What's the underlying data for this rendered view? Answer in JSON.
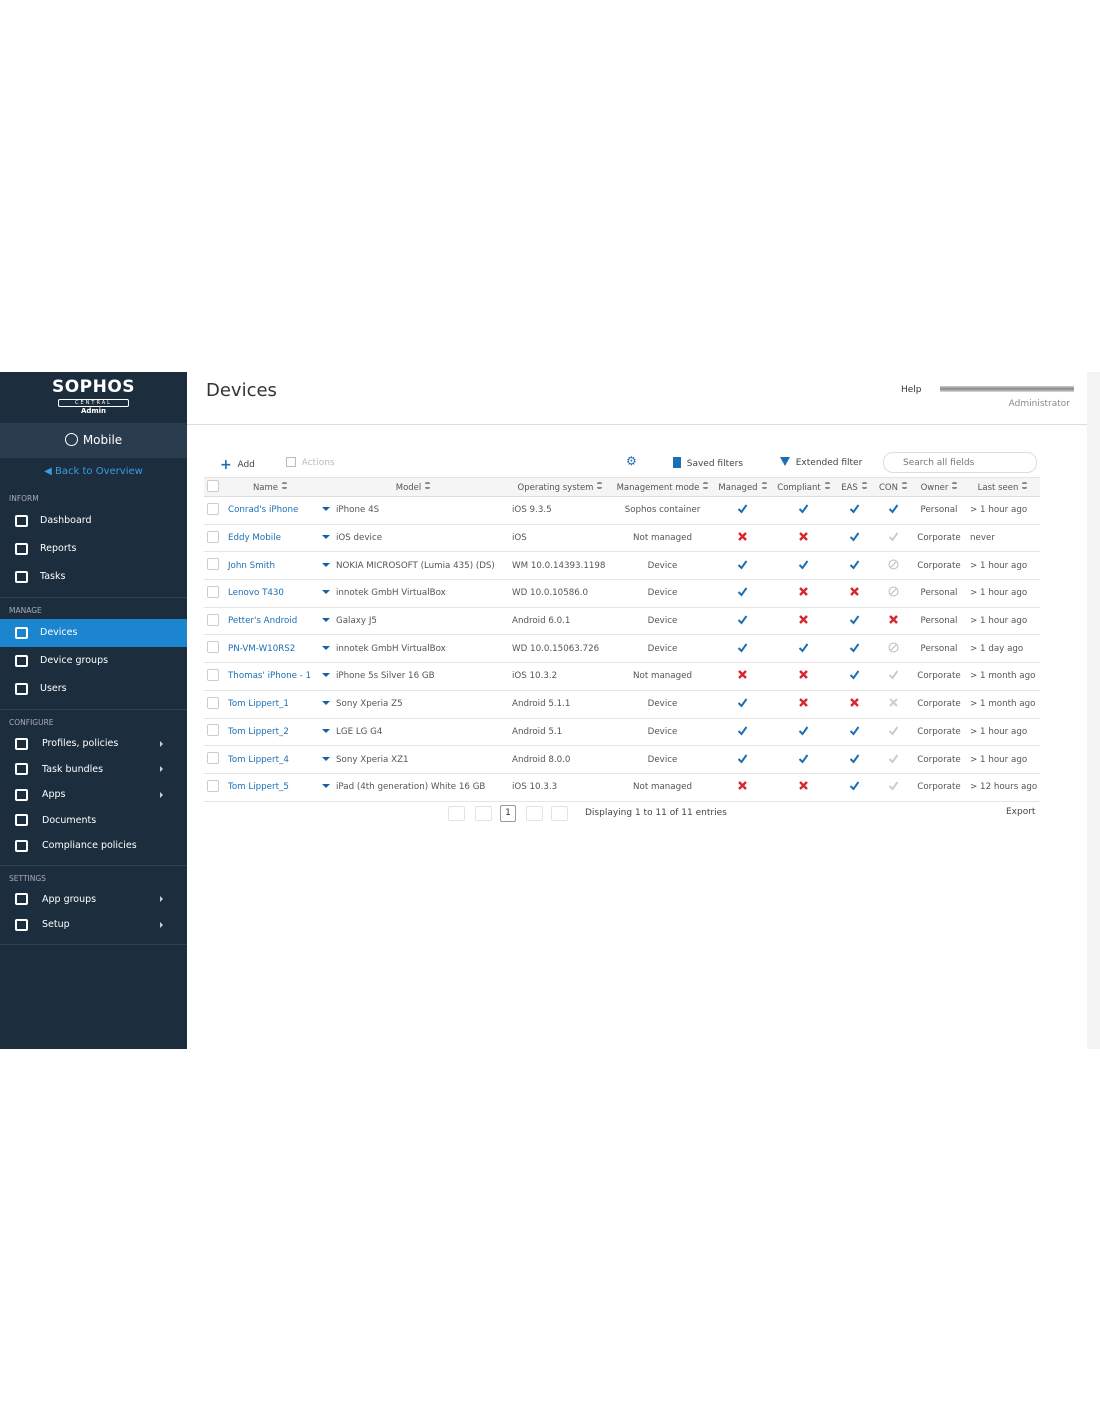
{
  "sidebar": {
    "logo": "SOPHOS",
    "logo_sub": "CENTRAL",
    "logo_role": "Admin",
    "product": "Mobile",
    "back": "Back to Overview",
    "sections": [
      {
        "title": "INFORM",
        "items": [
          {
            "label": "Dashboard"
          },
          {
            "label": "Reports"
          },
          {
            "label": "Tasks"
          }
        ]
      },
      {
        "title": "MANAGE",
        "items": [
          {
            "label": "Devices",
            "active": true
          },
          {
            "label": "Device groups"
          },
          {
            "label": "Users"
          }
        ]
      },
      {
        "title": "CONFIGURE",
        "items": [
          {
            "label": "Profiles, policies",
            "submenu": true
          },
          {
            "label": "Task bundles",
            "submenu": true
          },
          {
            "label": "Apps",
            "submenu": true
          },
          {
            "label": "Documents"
          },
          {
            "label": "Compliance policies"
          }
        ]
      },
      {
        "title": "SETTINGS",
        "items": [
          {
            "label": "App groups",
            "submenu": true
          },
          {
            "label": "Setup",
            "submenu": true
          }
        ]
      }
    ]
  },
  "header": {
    "title": "Devices",
    "help": "Help",
    "user_role": "Administrator"
  },
  "toolbar": {
    "add": "Add",
    "actions": "Actions",
    "saved_filters": "Saved filters",
    "extended_filter": "Extended filter",
    "search_placeholder": "Search all fields"
  },
  "table": {
    "columns": [
      "Name",
      "Model",
      "Operating system",
      "Management mode",
      "Managed",
      "Compliant",
      "EAS",
      "CON",
      "Owner",
      "Last seen"
    ],
    "rows": [
      {
        "name": "Conrad's iPhone",
        "model": "iPhone 4S",
        "os": "iOS 9.3.5",
        "mode": "Sophos container",
        "status": [
          "check",
          "check",
          "check",
          "check"
        ],
        "owner": "Personal",
        "last_seen": "> 1 hour ago"
      },
      {
        "name": "Eddy Mobile",
        "model": "iOS device",
        "os": "iOS",
        "mode": "Not managed",
        "status": [
          "cross",
          "cross",
          "check",
          "gray"
        ],
        "owner": "Corporate",
        "last_seen": "never"
      },
      {
        "name": "John Smith",
        "model": "NOKIA MICROSOFT (Lumia 435) (DS)",
        "os": "WM 10.0.14393.1198",
        "mode": "Device",
        "status": [
          "check",
          "check",
          "check",
          "na"
        ],
        "owner": "Corporate",
        "last_seen": "> 1 hour ago"
      },
      {
        "name": "Lenovo T430",
        "model": "innotek GmbH VirtualBox",
        "os": "WD 10.0.10586.0",
        "mode": "Device",
        "status": [
          "check",
          "cross",
          "cross",
          "na"
        ],
        "owner": "Personal",
        "last_seen": "> 1 hour ago"
      },
      {
        "name": "Petter's Android",
        "model": "Galaxy J5",
        "os": "Android 6.0.1",
        "mode": "Device",
        "status": [
          "check",
          "cross",
          "check",
          "cross"
        ],
        "owner": "Personal",
        "last_seen": "> 1 hour ago"
      },
      {
        "name": "PN-VM-W10RS2",
        "model": "innotek GmbH VirtualBox",
        "os": "WD 10.0.15063.726",
        "mode": "Device",
        "status": [
          "check",
          "check",
          "check",
          "na"
        ],
        "owner": "Personal",
        "last_seen": "> 1 day ago"
      },
      {
        "name": "Thomas' iPhone - 1",
        "model": "iPhone 5s Silver 16 GB",
        "os": "iOS 10.3.2",
        "mode": "Not managed",
        "status": [
          "cross",
          "cross",
          "check",
          "gray"
        ],
        "owner": "Corporate",
        "last_seen": "> 1 month ago"
      },
      {
        "name": "Tom Lippert_1",
        "model": "Sony Xperia Z5",
        "os": "Android 5.1.1",
        "mode": "Device",
        "status": [
          "check",
          "cross",
          "cross",
          "graycross"
        ],
        "owner": "Corporate",
        "last_seen": "> 1 month ago"
      },
      {
        "name": "Tom Lippert_2",
        "model": "LGE LG G4",
        "os": "Android 5.1",
        "mode": "Device",
        "status": [
          "check",
          "check",
          "check",
          "gray"
        ],
        "owner": "Corporate",
        "last_seen": "> 1 hour ago"
      },
      {
        "name": "Tom Lippert_4",
        "model": "Sony Xperia XZ1",
        "os": "Android 8.0.0",
        "mode": "Device",
        "status": [
          "check",
          "check",
          "check",
          "gray"
        ],
        "owner": "Corporate",
        "last_seen": "> 1 hour ago"
      },
      {
        "name": "Tom Lippert_5",
        "model": "iPad (4th generation) White 16 GB",
        "os": "iOS 10.3.3",
        "mode": "Not managed",
        "status": [
          "cross",
          "cross",
          "check",
          "gray"
        ],
        "owner": "Corporate",
        "last_seen": "> 12 hours ago"
      }
    ]
  },
  "footer": {
    "page": 1,
    "info": "Displaying 1 to 11 of 11 entries",
    "export": "Export"
  }
}
